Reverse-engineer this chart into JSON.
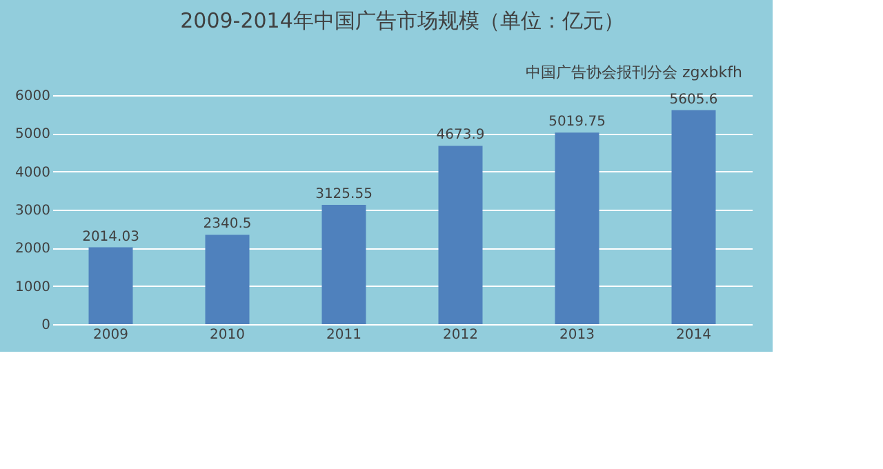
{
  "chart_data": {
    "type": "bar",
    "title": "2009-2014年中国广告市场规模（单位：亿元）",
    "annotations": [
      "中国广告协会报刊分会 zgxbkfh"
    ],
    "categories": [
      "2009",
      "2010",
      "2011",
      "2012",
      "2013",
      "2014"
    ],
    "series": [
      {
        "color": "#4f81bd",
        "values": [
          2014.03,
          2340.5,
          3125.55,
          4673.9,
          5019.75,
          5605.6
        ]
      }
    ],
    "ylim": [
      0,
      6000
    ],
    "yticks": [
      0,
      1000,
      2000,
      3000,
      4000,
      5000,
      6000
    ],
    "grid": "y",
    "data_labels": true
  }
}
